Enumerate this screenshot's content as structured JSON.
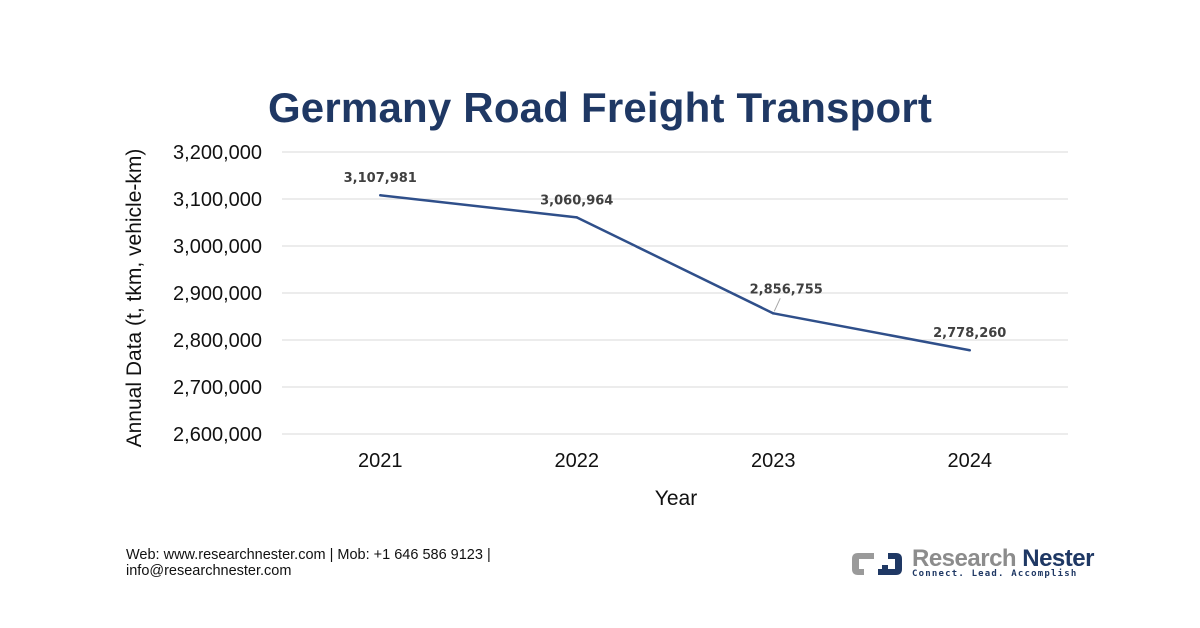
{
  "chart_data": {
    "type": "line",
    "title": "Germany Road Freight Transport",
    "xlabel": "Year",
    "ylabel": "Annual Data (t, tkm, vehicle-km)",
    "categories": [
      "2021",
      "2022",
      "2023",
      "2024"
    ],
    "series": [
      {
        "name": "Germany Road Freight Transport",
        "values": [
          3107981,
          3060964,
          2856755,
          2778260
        ],
        "labels": [
          "3,107,981",
          "3,060,964",
          "2,856,755",
          "2,778,260"
        ],
        "color": "#2f4f8a"
      }
    ],
    "ylim": [
      2600000,
      3200000
    ],
    "yticks": [
      3200000,
      3100000,
      3000000,
      2900000,
      2800000,
      2700000,
      2600000
    ],
    "ytick_labels": [
      "3,200,000",
      "3,100,000",
      "3,000,000",
      "2,900,000",
      "2,800,000",
      "2,700,000",
      "2,600,000"
    ],
    "grid": true,
    "legend": "none"
  },
  "footer": {
    "line1": "Web: www.researchnester.com | Mob: +1 646 586 9123 |",
    "line2": "info@researchnester.com"
  },
  "logo": {
    "word1": "Research",
    "word2": "Nester",
    "tagline": "Connect. Lead. Accomplish"
  },
  "colors": {
    "title": "#1f3864",
    "line": "#2f4f8a",
    "grid": "#d9d9d9"
  }
}
